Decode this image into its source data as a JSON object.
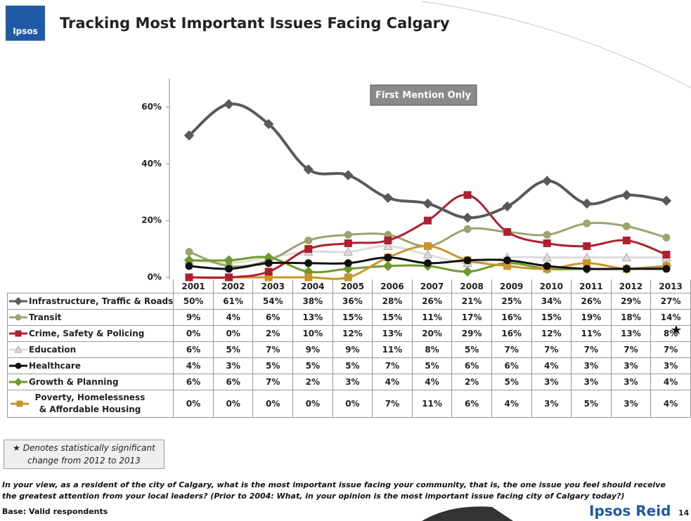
{
  "chart_data": {
    "type": "line",
    "logo": "Ipsos",
    "title": "Tracking Most Important Issues Facing Calgary",
    "annotation": "First Mention Only",
    "categories": [
      "2001",
      "2002",
      "2003",
      "2004",
      "2005",
      "2006",
      "2007",
      "2008",
      "2009",
      "2010",
      "2011",
      "2012",
      "2013"
    ],
    "ylim": [
      0,
      70
    ],
    "yticks": [
      {
        "value": 0,
        "label": "0%"
      },
      {
        "value": 20,
        "label": "20%"
      },
      {
        "value": 40,
        "label": "40%"
      },
      {
        "value": 60,
        "label": "60%"
      }
    ],
    "series": [
      {
        "name": "Infrastructure, Traffic & Roads",
        "color": "#58595b",
        "marker": "diamond",
        "values": [
          50,
          61,
          54,
          38,
          36,
          28,
          26,
          21,
          25,
          34,
          26,
          29,
          27
        ],
        "value_labels": [
          "50%",
          "61%",
          "54%",
          "38%",
          "36%",
          "28%",
          "26%",
          "21%",
          "25%",
          "34%",
          "26%",
          "29%",
          "27%"
        ]
      },
      {
        "name": "Transit",
        "color": "#9ca36e",
        "marker": "circle",
        "values": [
          9,
          4,
          6,
          13,
          15,
          15,
          11,
          17,
          16,
          15,
          19,
          18,
          14
        ],
        "value_labels": [
          "9%",
          "4%",
          "6%",
          "13%",
          "15%",
          "15%",
          "11%",
          "17%",
          "16%",
          "15%",
          "19%",
          "18%",
          "14%"
        ]
      },
      {
        "name": "Crime, Safety & Policing",
        "color": "#b01f2e",
        "marker": "square",
        "values": [
          0,
          0,
          2,
          10,
          12,
          13,
          20,
          29,
          16,
          12,
          11,
          13,
          8
        ],
        "value_labels": [
          "0%",
          "0%",
          "2%",
          "10%",
          "12%",
          "13%",
          "20%",
          "29%",
          "16%",
          "12%",
          "11%",
          "13%",
          "8%"
        ]
      },
      {
        "name": "Education",
        "color": "#dcdcdc",
        "marker": "triangle",
        "values": [
          6,
          5,
          7,
          9,
          9,
          11,
          8,
          5,
          7,
          7,
          7,
          7,
          7
        ],
        "value_labels": [
          "6%",
          "5%",
          "7%",
          "9%",
          "9%",
          "11%",
          "8%",
          "5%",
          "7%",
          "7%",
          "7%",
          "7%",
          "7%"
        ]
      },
      {
        "name": "Healthcare",
        "color": "#111111",
        "marker": "circle",
        "values": [
          4,
          3,
          5,
          5,
          5,
          7,
          5,
          6,
          6,
          4,
          3,
          3,
          3
        ],
        "value_labels": [
          "4%",
          "3%",
          "5%",
          "5%",
          "5%",
          "7%",
          "5%",
          "6%",
          "6%",
          "4%",
          "3%",
          "3%",
          "3%"
        ]
      },
      {
        "name": "Growth & Planning",
        "color": "#6e9a2c",
        "marker": "diamond",
        "values": [
          6,
          6,
          7,
          2,
          3,
          4,
          4,
          2,
          5,
          3,
          3,
          3,
          4
        ],
        "value_labels": [
          "6%",
          "6%",
          "7%",
          "2%",
          "3%",
          "4%",
          "4%",
          "2%",
          "5%",
          "3%",
          "3%",
          "3%",
          "4%"
        ]
      },
      {
        "name": "Poverty, Homelessness & Affordable Housing",
        "color": "#c9952b",
        "marker": "square",
        "values": [
          0,
          0,
          0,
          0,
          0,
          7,
          11,
          6,
          4,
          3,
          5,
          3,
          4
        ],
        "value_labels": [
          "0%",
          "0%",
          "0%",
          "0%",
          "0%",
          "7%",
          "11%",
          "6%",
          "4%",
          "3%",
          "5%",
          "3%",
          "4%"
        ]
      }
    ],
    "footnote": "Denotes statistically significant change from 2012 to 2013",
    "question": "In your view, as a resident of the city of Calgary, what is the most important issue facing your community, that is, the one issue you feel should receive the greatest attention from your local leaders?  (Prior to 2004: What, in your opinion is the most important issue facing city of Calgary today?)",
    "base": "Base: Valid respondents",
    "brand": "Ipsos Reid",
    "page": "14"
  }
}
